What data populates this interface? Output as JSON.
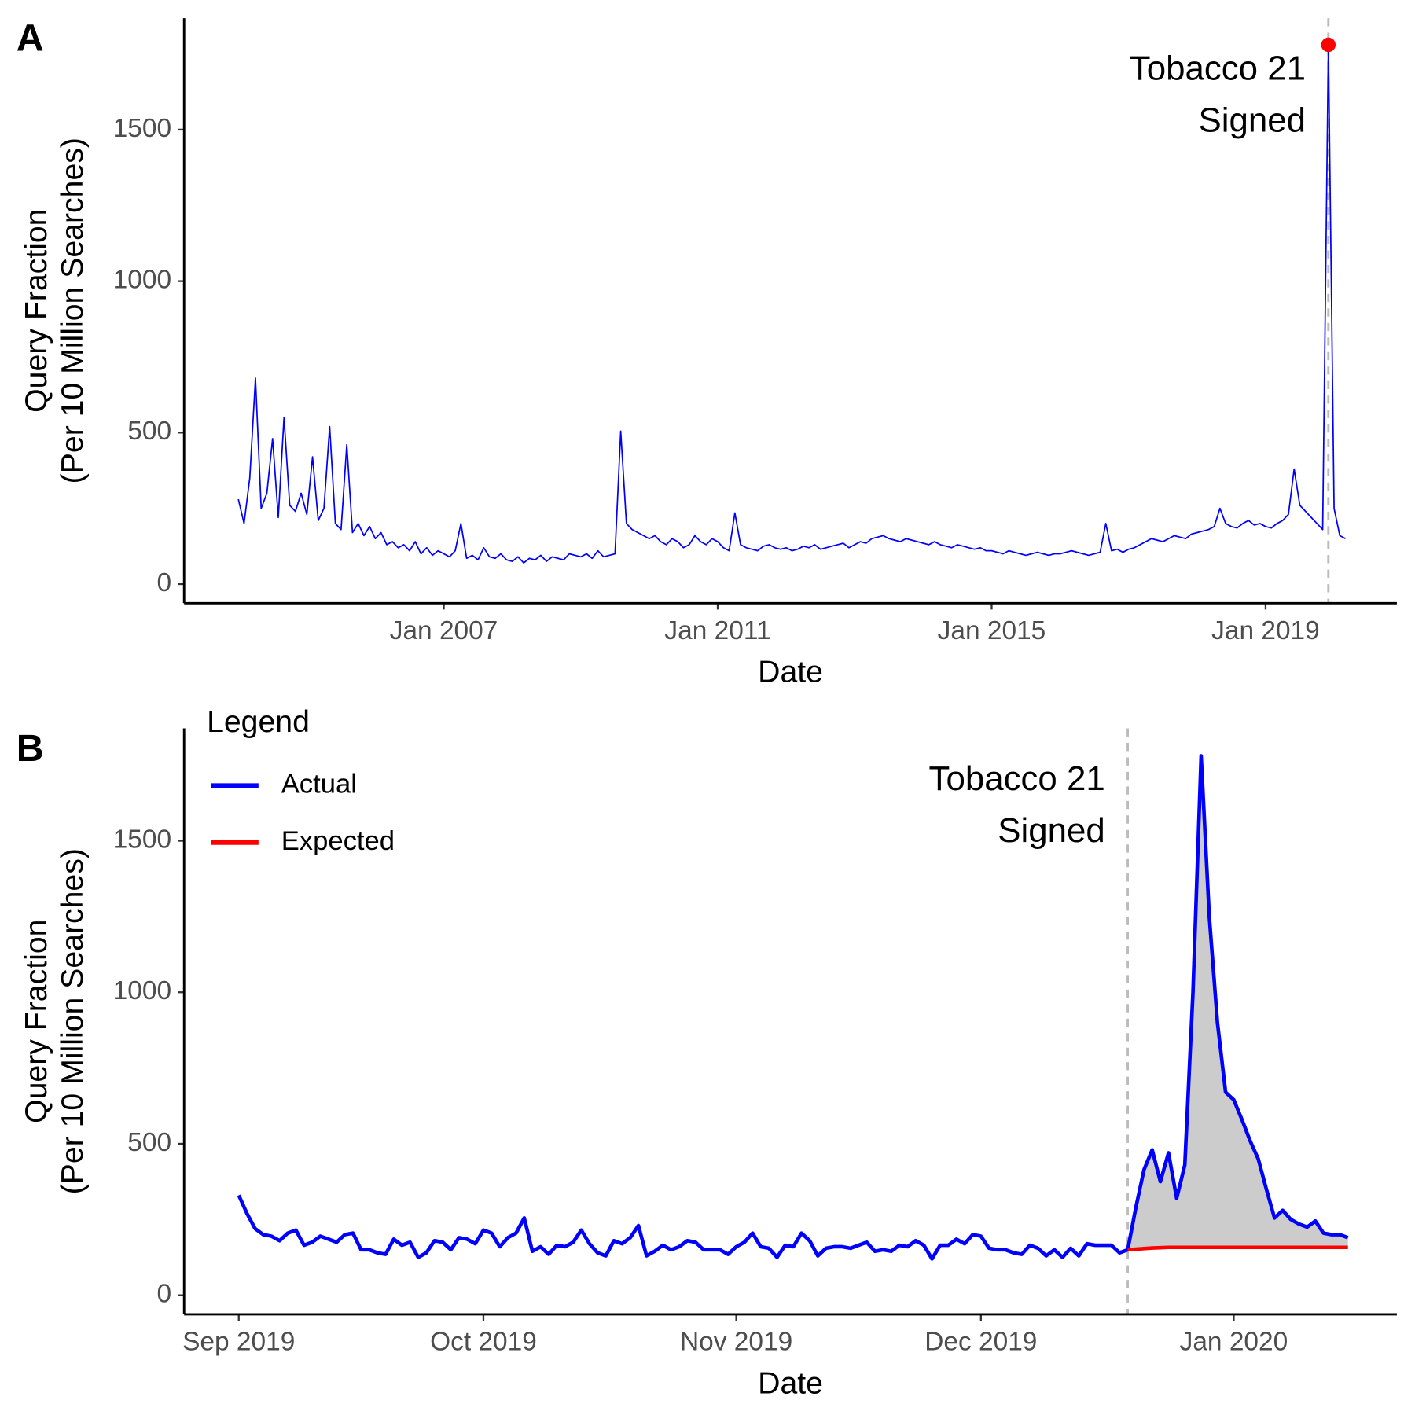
{
  "chart_data": [
    {
      "type": "line",
      "panel_label": "A",
      "xlabel": "Date",
      "ylabel": [
        "Query Fraction",
        "(Per 10 Million Searches)"
      ],
      "x": [
        0,
        1,
        2,
        3,
        4,
        5,
        6,
        7,
        8,
        9,
        10,
        11,
        12,
        13,
        14,
        15,
        16,
        17,
        18,
        19,
        20,
        21,
        22,
        23,
        24,
        25,
        26,
        27,
        28,
        29,
        30,
        31,
        32,
        33,
        34,
        35,
        36,
        37,
        38,
        39,
        40,
        41,
        42,
        43,
        44,
        45,
        46,
        47,
        48,
        49,
        50,
        51,
        52,
        53,
        54,
        55,
        56,
        57,
        58,
        59,
        60,
        61,
        62,
        63,
        64,
        65,
        66,
        67,
        68,
        69,
        70,
        71,
        72,
        73,
        74,
        75,
        76,
        77,
        78,
        79,
        80,
        81,
        82,
        83,
        84,
        85,
        86,
        87,
        88,
        89,
        90,
        91,
        92,
        93,
        94,
        95,
        96,
        97,
        98,
        99,
        100,
        101,
        102,
        103,
        104,
        105,
        106,
        107,
        108,
        109,
        110,
        111,
        112,
        113,
        114,
        115,
        116,
        117,
        118,
        119,
        120,
        121,
        122,
        123,
        124,
        125,
        126,
        127,
        128,
        129,
        130,
        131,
        132,
        133,
        134,
        135,
        136,
        137,
        138,
        139,
        140,
        141,
        142,
        143,
        144,
        145,
        146,
        147,
        148,
        149,
        150,
        151,
        152,
        153,
        154,
        155,
        156,
        157,
        158,
        159,
        160,
        161,
        162,
        163,
        164,
        165,
        166,
        167,
        168,
        169,
        170,
        171,
        172,
        173,
        174,
        175,
        176,
        177,
        178,
        179,
        180,
        181,
        182,
        183,
        184,
        185,
        186,
        187,
        188,
        189,
        190,
        191,
        192,
        193,
        194
      ],
      "series": [
        {
          "color": "#0000ff",
          "peak_color": "#ff0000",
          "values": [
            280,
            200,
            350,
            680,
            250,
            300,
            480,
            220,
            550,
            260,
            240,
            300,
            230,
            420,
            210,
            250,
            520,
            200,
            180,
            460,
            170,
            200,
            160,
            190,
            150,
            170,
            130,
            140,
            120,
            130,
            110,
            140,
            100,
            120,
            95,
            110,
            100,
            90,
            110,
            200,
            85,
            95,
            80,
            120,
            90,
            85,
            100,
            80,
            75,
            90,
            70,
            85,
            80,
            95,
            75,
            90,
            85,
            80,
            100,
            95,
            90,
            100,
            85,
            110,
            90,
            95,
            100,
            505,
            200,
            180,
            170,
            160,
            150,
            160,
            140,
            130,
            150,
            140,
            120,
            130,
            160,
            140,
            130,
            150,
            140,
            120,
            110,
            235,
            130,
            120,
            115,
            110,
            125,
            130,
            120,
            115,
            120,
            110,
            115,
            125,
            120,
            130,
            115,
            120,
            125,
            130,
            135,
            120,
            130,
            140,
            135,
            150,
            155,
            160,
            150,
            145,
            140,
            150,
            145,
            140,
            135,
            130,
            140,
            130,
            125,
            120,
            130,
            125,
            120,
            115,
            120,
            110,
            110,
            105,
            100,
            110,
            105,
            100,
            95,
            100,
            105,
            100,
            95,
            100,
            100,
            105,
            110,
            105,
            100,
            95,
            100,
            105,
            200,
            110,
            115,
            105,
            115,
            120,
            130,
            140,
            150,
            145,
            140,
            150,
            160,
            155,
            150,
            165,
            170,
            175,
            180,
            190,
            250,
            200,
            190,
            185,
            200,
            210,
            195,
            200,
            190,
            185,
            200,
            210,
            230,
            380,
            260,
            240,
            220,
            200,
            180,
            1780,
            250,
            160,
            150
          ]
        }
      ],
      "xlim": [
        -9.5,
        203
      ],
      "ylim": [
        -63,
        1868
      ],
      "xticks": [
        {
          "value": 36,
          "label": "Jan 2007"
        },
        {
          "value": 84,
          "label": "Jan 2011"
        },
        {
          "value": 132,
          "label": "Jan 2015"
        },
        {
          "value": 180,
          "label": "Jan 2019"
        }
      ],
      "yticks": [
        0,
        500,
        1000,
        1500
      ],
      "line_width": 1.5,
      "event": {
        "x": 191,
        "color": "#bbbbbb",
        "label": [
          "Tobacco 21",
          "Signed"
        ]
      }
    },
    {
      "type": "line",
      "panel_label": "B",
      "xlabel": "Date",
      "ylabel": [
        "Query Fraction",
        "(Per 10 Million Searches)"
      ],
      "x": [
        0,
        1,
        2,
        3,
        4,
        5,
        6,
        7,
        8,
        9,
        10,
        11,
        12,
        13,
        14,
        15,
        16,
        17,
        18,
        19,
        20,
        21,
        22,
        23,
        24,
        25,
        26,
        27,
        28,
        29,
        30,
        31,
        32,
        33,
        34,
        35,
        36,
        37,
        38,
        39,
        40,
        41,
        42,
        43,
        44,
        45,
        46,
        47,
        48,
        49,
        50,
        51,
        52,
        53,
        54,
        55,
        56,
        57,
        58,
        59,
        60,
        61,
        62,
        63,
        64,
        65,
        66,
        67,
        68,
        69,
        70,
        71,
        72,
        73,
        74,
        75,
        76,
        77,
        78,
        79,
        80,
        81,
        82,
        83,
        84,
        85,
        86,
        87,
        88,
        89,
        90,
        91,
        92,
        93,
        94,
        95,
        96,
        97,
        98,
        99,
        100,
        101,
        102,
        103,
        104,
        105,
        106,
        107,
        108,
        109,
        110,
        111,
        112,
        113,
        114,
        115,
        116,
        117,
        118,
        119,
        120,
        121,
        122,
        123,
        124,
        125,
        126,
        127,
        128,
        129,
        130,
        131,
        132,
        133,
        134,
        135,
        136
      ],
      "series": [
        {
          "name": "Actual",
          "color": "#0000ff",
          "values": [
            330,
            270,
            220,
            200,
            195,
            180,
            205,
            215,
            165,
            175,
            195,
            185,
            175,
            200,
            205,
            150,
            150,
            140,
            135,
            185,
            165,
            175,
            125,
            140,
            180,
            175,
            150,
            190,
            185,
            170,
            215,
            205,
            160,
            190,
            205,
            255,
            145,
            160,
            135,
            165,
            160,
            175,
            215,
            170,
            140,
            130,
            180,
            170,
            190,
            230,
            130,
            145,
            165,
            150,
            160,
            180,
            175,
            150,
            150,
            150,
            135,
            160,
            175,
            205,
            160,
            155,
            125,
            165,
            160,
            205,
            180,
            130,
            155,
            160,
            160,
            155,
            165,
            175,
            145,
            150,
            145,
            165,
            160,
            180,
            165,
            120,
            165,
            165,
            185,
            170,
            200,
            195,
            155,
            150,
            150,
            140,
            135,
            165,
            155,
            130,
            150,
            125,
            155,
            130,
            170,
            165,
            165,
            165,
            140,
            150,
            290,
            415,
            480,
            375,
            470,
            320,
            430,
            1000,
            1780,
            1250,
            900,
            670,
            645,
            580,
            510,
            450,
            350,
            255,
            280,
            250,
            235,
            225,
            245,
            205,
            200,
            200,
            190
          ]
        },
        {
          "name": "Expected",
          "color": "#ff0000",
          "values": [
            null,
            null,
            null,
            null,
            null,
            null,
            null,
            null,
            null,
            null,
            null,
            null,
            null,
            null,
            null,
            null,
            null,
            null,
            null,
            null,
            null,
            null,
            null,
            null,
            null,
            null,
            null,
            null,
            null,
            null,
            null,
            null,
            null,
            null,
            null,
            null,
            null,
            null,
            null,
            null,
            null,
            null,
            null,
            null,
            null,
            null,
            null,
            null,
            null,
            null,
            null,
            null,
            null,
            null,
            null,
            null,
            null,
            null,
            null,
            null,
            null,
            null,
            null,
            null,
            null,
            null,
            null,
            null,
            null,
            null,
            null,
            null,
            null,
            null,
            null,
            null,
            null,
            null,
            null,
            null,
            null,
            null,
            null,
            null,
            null,
            null,
            null,
            null,
            null,
            null,
            null,
            null,
            null,
            null,
            null,
            null,
            null,
            null,
            null,
            null,
            null,
            null,
            null,
            null,
            null,
            null,
            null,
            null,
            null,
            150,
            152,
            154,
            156,
            157,
            158,
            158,
            158,
            158,
            158,
            158,
            158,
            158,
            158,
            158,
            158,
            158,
            158,
            158,
            158,
            158,
            158,
            158,
            158,
            158,
            158,
            158,
            158
          ]
        }
      ],
      "fill_between": "#cccccc",
      "xlim": [
        -6.7,
        142
      ],
      "ylim": [
        -63,
        1871
      ],
      "xticks": [
        {
          "value": 0,
          "label": "Sep 2019"
        },
        {
          "value": 30,
          "label": "Oct 2019"
        },
        {
          "value": 61,
          "label": "Nov 2019"
        },
        {
          "value": 91,
          "label": "Dec 2019"
        },
        {
          "value": 122,
          "label": "Jan 2020"
        }
      ],
      "yticks": [
        0,
        500,
        1000,
        1500
      ],
      "line_width": 4,
      "legend": {
        "title": "Legend",
        "position": "top-left"
      },
      "event": {
        "x": 109,
        "color": "#bbbbbb",
        "label": [
          "Tobacco 21",
          "Signed"
        ]
      }
    }
  ]
}
